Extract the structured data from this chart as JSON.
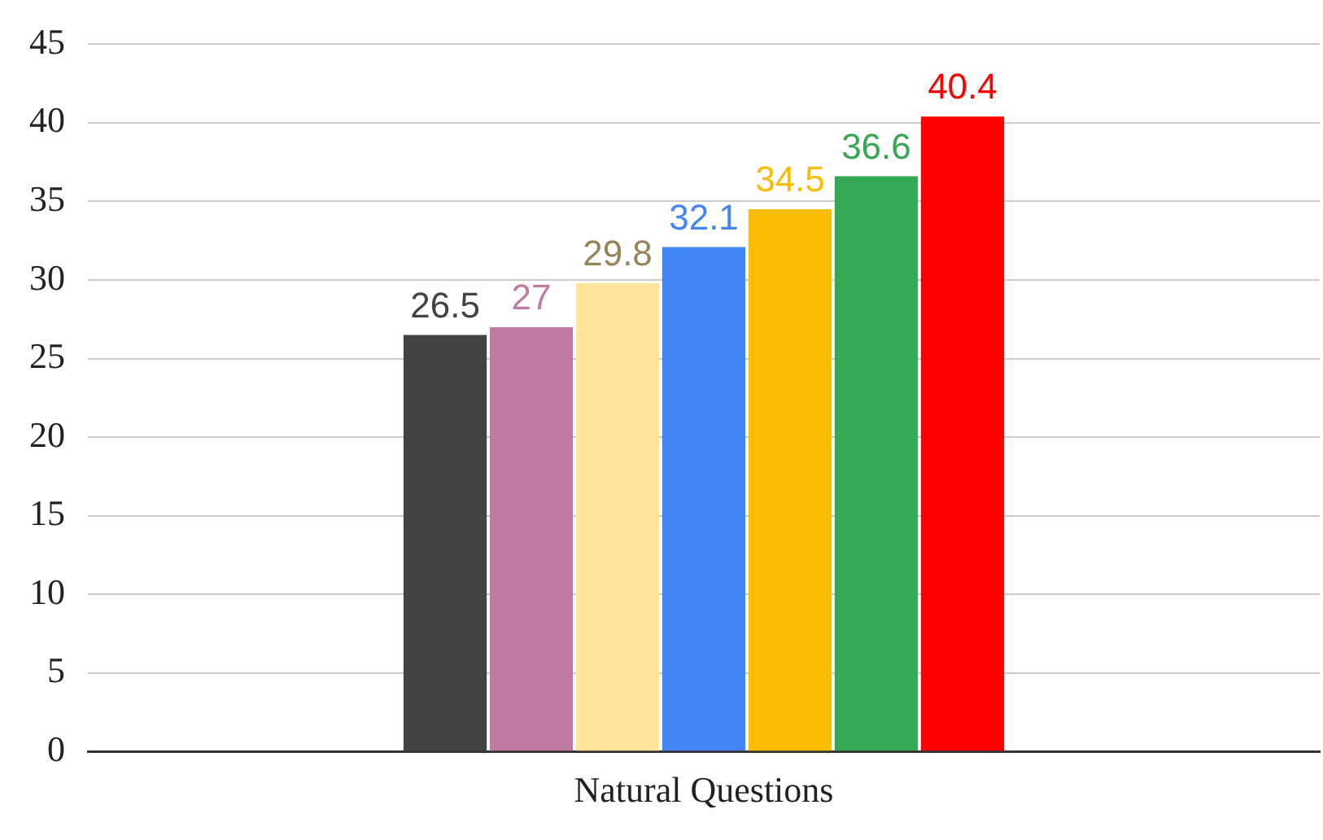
{
  "chart_data": {
    "type": "bar",
    "categories": [
      "Natural Questions"
    ],
    "series": [
      {
        "color": "#434343",
        "values": [
          26.5
        ]
      },
      {
        "color": "#c27ba0",
        "values": [
          27
        ]
      },
      {
        "color": "#ffe599",
        "values": [
          29.8
        ]
      },
      {
        "color": "#4285f4",
        "values": [
          32.1
        ]
      },
      {
        "color": "#fbbc04",
        "values": [
          34.5
        ]
      },
      {
        "color": "#34a853",
        "values": [
          36.6
        ]
      },
      {
        "color": "#ff0000",
        "values": [
          40.4
        ]
      }
    ],
    "ylim": [
      0,
      45
    ],
    "yticks": [
      0,
      5,
      10,
      15,
      20,
      25,
      30,
      35,
      40,
      45
    ],
    "grid": "y",
    "legend": false,
    "data_labels": true
  }
}
